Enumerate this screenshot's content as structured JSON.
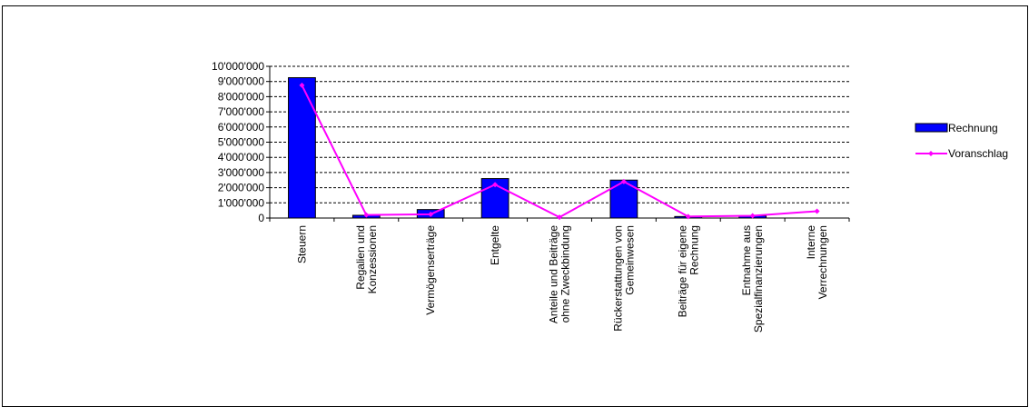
{
  "chart_data": {
    "type": "bar",
    "categories": [
      [
        "Steuern"
      ],
      [
        "Regalien und",
        "Konzessionen"
      ],
      [
        "Vermögenserträge"
      ],
      [
        "Entgelte"
      ],
      [
        "Anteile und Beiträge",
        "ohne Zweckbindung"
      ],
      [
        "Rückerstattungen von",
        "Gemeinwesen"
      ],
      [
        "Beiträge für eigene",
        "Rechnung"
      ],
      [
        "Entnahme aus",
        "Spezialfinanzierungen"
      ],
      [
        "Interne",
        "Verrechnungen"
      ]
    ],
    "series": [
      {
        "name": "Rechnung",
        "type": "bar",
        "color": "#0000ff",
        "values": [
          9250000,
          180000,
          560000,
          2600000,
          0,
          2500000,
          100000,
          150000,
          0
        ]
      },
      {
        "name": "Voranschlag",
        "type": "line",
        "color": "#ff00ff",
        "values": [
          8750000,
          200000,
          250000,
          2200000,
          50000,
          2400000,
          100000,
          150000,
          450000
        ]
      }
    ],
    "yticks": [
      "0",
      "1'000'000",
      "2'000'000",
      "3'000'000",
      "4'000'000",
      "5'000'000",
      "6'000'000",
      "7'000'000",
      "8'000'000",
      "9'000'000",
      "10'000'000"
    ],
    "ylim": [
      0,
      10000000
    ],
    "grid": "horizontal dashed",
    "legend": "right"
  }
}
